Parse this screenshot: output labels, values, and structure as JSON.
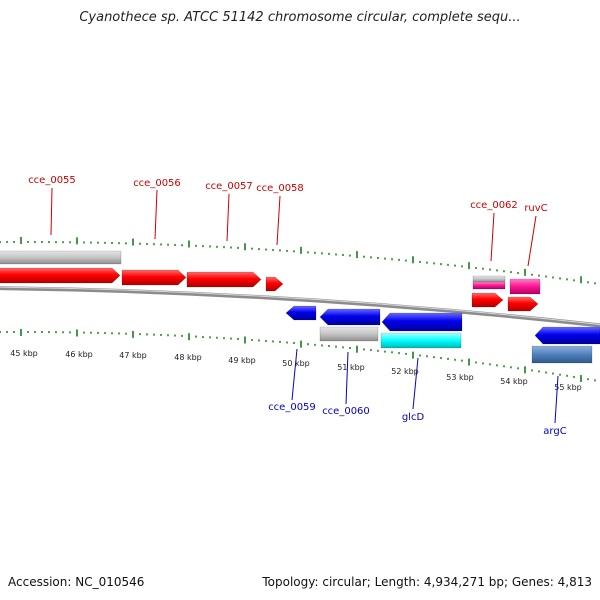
{
  "title": "Cyanothece sp. ATCC 51142 chromosome circular, complete sequ...",
  "footer": {
    "accession": "Accession: NC_010546",
    "summary": "Topology: circular; Length: 4,934,271 bp; Genes: 4,813"
  },
  "colors": {
    "forward_gene": "#ff0000",
    "reverse_gene": "#0000ee",
    "rna_gray": "#c0c0c0",
    "cyan": "#00ffff",
    "pink": "#ff1493",
    "steel_blue": "#4f81bd",
    "tick_green": "#1a7a1a",
    "label_red": "#cc0000",
    "label_blue": "#0000cc",
    "backbone": "#8c8c8c"
  },
  "scale_labels": [
    "45 kbp",
    "46 kbp",
    "47 kbp",
    "48 kbp",
    "49 kbp",
    "50 kbp",
    "51 kbp",
    "52 kbp",
    "53 kbp",
    "54 kbp",
    "55 kbp"
  ],
  "forward_labels": [
    "cce_0055",
    "cce_0056",
    "cce_0057",
    "cce_0058",
    "cce_0062",
    "ruvC"
  ],
  "reverse_labels": [
    "cce_0059",
    "cce_0060",
    "glcD",
    "argC"
  ]
}
